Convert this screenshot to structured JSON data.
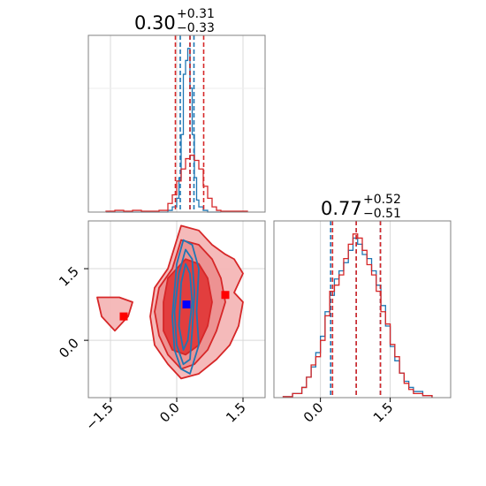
{
  "chart_data": [
    {
      "type": "histogram",
      "panel": "top-left",
      "title": {
        "value": "0.30",
        "plus": "+0.31",
        "minus": "−0.33"
      },
      "xlim": [
        -2.0,
        2.0
      ],
      "grid": true,
      "x_tick_labels_shown": false,
      "y_tick_labels_shown": false,
      "series": [
        {
          "color": "#1f77b4",
          "bin_edges": [
            -1.6,
            -1.4,
            -1.2,
            -1.0,
            -0.8,
            -0.6,
            -0.4,
            -0.2,
            -0.1,
            0.0,
            0.05,
            0.1,
            0.15,
            0.2,
            0.25,
            0.3,
            0.35,
            0.4,
            0.45,
            0.5,
            0.6,
            0.7,
            0.8,
            1.0
          ],
          "counts": [
            0,
            0,
            0,
            0,
            0,
            0,
            0,
            0.01,
            0.03,
            0.08,
            0.2,
            0.45,
            0.8,
            0.88,
            0.95,
            0.72,
            0.45,
            0.2,
            0.07,
            0.03,
            0.01,
            0,
            0
          ],
          "quantile_lines": [
            0.08,
            0.3,
            0.39
          ]
        },
        {
          "color": "#d62728",
          "bin_edges": [
            -1.6,
            -1.4,
            -1.2,
            -1.0,
            -0.8,
            -0.6,
            -0.4,
            -0.2,
            -0.1,
            0.0,
            0.1,
            0.2,
            0.3,
            0.4,
            0.5,
            0.6,
            0.7,
            0.8,
            0.9,
            1.0,
            1.2,
            1.6
          ],
          "counts": [
            0.005,
            0.01,
            0.005,
            0.01,
            0.005,
            0.005,
            0.01,
            0.05,
            0.1,
            0.18,
            0.25,
            0.31,
            0.33,
            0.3,
            0.25,
            0.15,
            0.08,
            0.03,
            0.01,
            0.005,
            0.005
          ],
          "quantile_lines": [
            -0.03,
            0.3,
            0.61
          ]
        }
      ]
    },
    {
      "type": "histogram",
      "panel": "bottom-right",
      "title": {
        "value": "0.77",
        "plus": "+0.52",
        "minus": "−0.51"
      },
      "xlim": [
        -1.0,
        2.8
      ],
      "x_ticks": [
        0.0,
        1.5
      ],
      "x_tick_labels": [
        "0.0",
        "1.5"
      ],
      "grid": true,
      "series": [
        {
          "color": "#1f77b4",
          "bin_edges": [
            -0.8,
            -0.6,
            -0.4,
            -0.3,
            -0.2,
            -0.1,
            0.0,
            0.1,
            0.2,
            0.3,
            0.4,
            0.5,
            0.6,
            0.7,
            0.8,
            0.9,
            1.0,
            1.1,
            1.2,
            1.3,
            1.4,
            1.5,
            1.6,
            1.7,
            1.8,
            1.9,
            2.0,
            2.2,
            2.4
          ],
          "counts": [
            0.005,
            0.02,
            0.05,
            0.1,
            0.15,
            0.22,
            0.3,
            0.42,
            0.5,
            0.58,
            0.62,
            0.66,
            0.72,
            0.78,
            0.75,
            0.7,
            0.68,
            0.62,
            0.55,
            0.45,
            0.35,
            0.25,
            0.18,
            0.12,
            0.08,
            0.05,
            0.03,
            0.01
          ],
          "quantile_lines": [
            0.22,
            0.77,
            1.29
          ]
        },
        {
          "color": "#d62728",
          "bin_edges": [
            -0.8,
            -0.6,
            -0.4,
            -0.3,
            -0.2,
            -0.1,
            0.0,
            0.1,
            0.2,
            0.3,
            0.4,
            0.5,
            0.6,
            0.7,
            0.8,
            0.9,
            1.0,
            1.1,
            1.2,
            1.3,
            1.4,
            1.5,
            1.6,
            1.7,
            1.8,
            1.9,
            2.0,
            2.2,
            2.4
          ],
          "counts": [
            0.005,
            0.02,
            0.05,
            0.1,
            0.16,
            0.2,
            0.28,
            0.4,
            0.52,
            0.55,
            0.6,
            0.68,
            0.75,
            0.8,
            0.78,
            0.72,
            0.65,
            0.6,
            0.52,
            0.42,
            0.36,
            0.26,
            0.2,
            0.12,
            0.07,
            0.04,
            0.02,
            0.01
          ],
          "quantile_lines": [
            0.26,
            0.77,
            1.29
          ]
        }
      ]
    },
    {
      "type": "contour",
      "panel": "bottom-left",
      "xlim": [
        -2.0,
        2.0
      ],
      "ylim": [
        -1.2,
        2.5
      ],
      "x_ticks": [
        -1.5,
        0.0,
        1.5
      ],
      "x_tick_labels": [
        "−1.5",
        "0.0",
        "1.5"
      ],
      "y_ticks": [
        0.0,
        1.5
      ],
      "y_tick_labels": [
        "0.0",
        "1.5"
      ],
      "grid": true,
      "contours": [
        {
          "color": "#d62728",
          "style": "filled",
          "levels": [
            [
              [
                -0.2,
                1.5
              ],
              [
                0.1,
                2.4
              ],
              [
                0.5,
                2.3
              ],
              [
                0.8,
                2.0
              ],
              [
                1.1,
                1.8
              ],
              [
                1.3,
                1.7
              ],
              [
                1.5,
                1.4
              ],
              [
                1.3,
                1.0
              ],
              [
                1.5,
                0.8
              ],
              [
                1.4,
                0.3
              ],
              [
                1.2,
                -0.1
              ],
              [
                0.9,
                -0.4
              ],
              [
                0.5,
                -0.7
              ],
              [
                0.1,
                -0.8
              ],
              [
                -0.2,
                -0.5
              ],
              [
                -0.5,
                -0.1
              ],
              [
                -0.6,
                0.5
              ],
              [
                -0.5,
                1.1
              ]
            ],
            [
              [
                -0.1,
                1.5
              ],
              [
                0.1,
                2.1
              ],
              [
                0.5,
                2.0
              ],
              [
                0.8,
                1.7
              ],
              [
                1.0,
                1.3
              ],
              [
                1.1,
                0.8
              ],
              [
                0.9,
                0.2
              ],
              [
                0.7,
                -0.2
              ],
              [
                0.4,
                -0.5
              ],
              [
                0.1,
                -0.6
              ],
              [
                -0.2,
                -0.3
              ],
              [
                -0.4,
                0.1
              ],
              [
                -0.5,
                0.6
              ],
              [
                -0.4,
                1.1
              ]
            ],
            [
              [
                0.0,
                1.5
              ],
              [
                0.2,
                1.7
              ],
              [
                0.5,
                1.6
              ],
              [
                0.7,
                1.3
              ],
              [
                0.8,
                0.8
              ],
              [
                0.7,
                0.3
              ],
              [
                0.5,
                -0.1
              ],
              [
                0.2,
                -0.3
              ],
              [
                -0.1,
                -0.2
              ],
              [
                -0.3,
                0.2
              ],
              [
                -0.3,
                0.8
              ],
              [
                -0.2,
                1.3
              ]
            ],
            [
              [
                -1.8,
                0.9
              ],
              [
                -1.3,
                0.9
              ],
              [
                -1.0,
                0.8
              ],
              [
                -1.1,
                0.5
              ],
              [
                -1.4,
                0.2
              ],
              [
                -1.7,
                0.5
              ]
            ]
          ],
          "marker": {
            "shape": "square",
            "x": 1.1,
            "y": 0.95
          },
          "marker_2": {
            "shape": "square",
            "x": -1.2,
            "y": 0.5
          }
        },
        {
          "color": "#1f77b4",
          "style": "lines",
          "levels": [
            [
              [
                0.0,
                1.6
              ],
              [
                0.15,
                2.1
              ],
              [
                0.35,
                2.0
              ],
              [
                0.5,
                1.5
              ],
              [
                0.45,
                0.6
              ],
              [
                0.5,
                -0.1
              ],
              [
                0.3,
                -0.7
              ],
              [
                0.1,
                -0.6
              ],
              [
                -0.05,
                -0.2
              ],
              [
                -0.1,
                0.5
              ]
            ],
            [
              [
                0.05,
                1.4
              ],
              [
                0.2,
                1.9
              ],
              [
                0.35,
                1.7
              ],
              [
                0.4,
                1.0
              ],
              [
                0.35,
                0.2
              ],
              [
                0.3,
                -0.4
              ],
              [
                0.15,
                -0.5
              ],
              [
                0.0,
                -0.1
              ],
              [
                -0.05,
                0.6
              ]
            ],
            [
              [
                0.1,
                1.2
              ],
              [
                0.2,
                1.6
              ],
              [
                0.3,
                1.4
              ],
              [
                0.35,
                0.8
              ],
              [
                0.25,
                0.0
              ],
              [
                0.15,
                -0.2
              ],
              [
                0.05,
                0.3
              ]
            ]
          ],
          "marker": {
            "shape": "square",
            "x": 0.22,
            "y": 0.75
          }
        }
      ]
    }
  ]
}
